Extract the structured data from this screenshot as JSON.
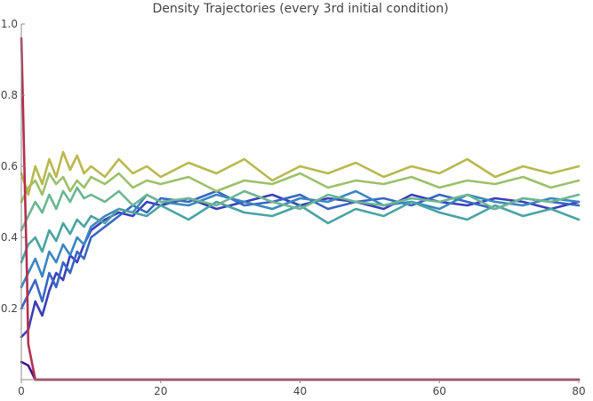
{
  "chart_data": {
    "type": "line",
    "title": "Density Trajectories (every 3rd initial condition)",
    "xlabel": "",
    "ylabel": "",
    "xlim": [
      0,
      80
    ],
    "ylim": [
      0,
      1.0
    ],
    "x_ticks": [
      0,
      20,
      40,
      60,
      80
    ],
    "y_ticks": [
      0.2,
      0.4,
      0.6,
      0.8,
      1.0
    ],
    "x_tick_labels": [
      "0",
      "20",
      "40",
      "60",
      "80"
    ],
    "y_tick_labels": [
      "0.2",
      "0.4",
      "0.6",
      "0.8",
      "1.0"
    ],
    "grid": false,
    "legend": "none",
    "colormap": [
      "#4b0f8c",
      "#3a4fc8",
      "#3a86c0",
      "#4aa3a3",
      "#6cb692",
      "#9cc06a",
      "#c7b64e",
      "#b3304e"
    ],
    "series": [
      {
        "color": "#4b0f8c",
        "x": [
          0,
          1,
          2,
          3,
          4,
          5,
          80
        ],
        "values": [
          0.05,
          0.04,
          0.0,
          0.0,
          0.0,
          0.0,
          0.0
        ]
      },
      {
        "color": "#3a3fb8",
        "x": [
          0,
          1,
          2,
          3,
          4,
          5,
          6,
          7,
          8,
          9,
          10,
          12,
          14,
          16,
          18,
          20,
          24,
          28,
          32,
          36,
          40,
          44,
          48,
          52,
          56,
          60,
          64,
          68,
          72,
          76,
          80
        ],
        "values": [
          0.12,
          0.14,
          0.22,
          0.18,
          0.25,
          0.3,
          0.28,
          0.35,
          0.33,
          0.38,
          0.42,
          0.45,
          0.47,
          0.46,
          0.5,
          0.49,
          0.51,
          0.48,
          0.5,
          0.52,
          0.49,
          0.51,
          0.5,
          0.48,
          0.52,
          0.5,
          0.49,
          0.51,
          0.5,
          0.48,
          0.5
        ]
      },
      {
        "color": "#3866c4",
        "x": [
          0,
          1,
          2,
          3,
          4,
          5,
          6,
          7,
          8,
          9,
          10,
          12,
          14,
          16,
          18,
          20,
          24,
          28,
          32,
          36,
          40,
          44,
          48,
          52,
          56,
          60,
          64,
          68,
          72,
          76,
          80
        ],
        "values": [
          0.2,
          0.24,
          0.28,
          0.22,
          0.3,
          0.26,
          0.33,
          0.3,
          0.36,
          0.34,
          0.4,
          0.43,
          0.46,
          0.49,
          0.47,
          0.51,
          0.5,
          0.53,
          0.49,
          0.5,
          0.52,
          0.48,
          0.5,
          0.51,
          0.49,
          0.52,
          0.5,
          0.48,
          0.51,
          0.5,
          0.49
        ]
      },
      {
        "color": "#3a86c0",
        "x": [
          0,
          1,
          2,
          3,
          4,
          5,
          6,
          7,
          8,
          9,
          10,
          12,
          14,
          16,
          18,
          20,
          24,
          28,
          32,
          36,
          40,
          44,
          48,
          52,
          56,
          60,
          64,
          68,
          72,
          76,
          80
        ],
        "values": [
          0.26,
          0.3,
          0.34,
          0.29,
          0.36,
          0.33,
          0.38,
          0.35,
          0.4,
          0.38,
          0.43,
          0.46,
          0.48,
          0.47,
          0.52,
          0.5,
          0.49,
          0.52,
          0.5,
          0.48,
          0.51,
          0.5,
          0.53,
          0.49,
          0.5,
          0.48,
          0.52,
          0.5,
          0.49,
          0.51,
          0.5
        ]
      },
      {
        "color": "#4aa3a3",
        "x": [
          0,
          1,
          2,
          3,
          4,
          5,
          6,
          7,
          8,
          9,
          10,
          12,
          14,
          16,
          18,
          20,
          24,
          28,
          32,
          36,
          40,
          44,
          48,
          52,
          56,
          60,
          64,
          68,
          72,
          76,
          80
        ],
        "values": [
          0.33,
          0.38,
          0.4,
          0.36,
          0.42,
          0.39,
          0.44,
          0.41,
          0.45,
          0.43,
          0.46,
          0.44,
          0.48,
          0.47,
          0.46,
          0.49,
          0.45,
          0.5,
          0.47,
          0.46,
          0.49,
          0.44,
          0.48,
          0.46,
          0.5,
          0.47,
          0.45,
          0.49,
          0.46,
          0.48,
          0.45
        ]
      },
      {
        "color": "#6cb692",
        "x": [
          0,
          1,
          2,
          3,
          4,
          5,
          6,
          7,
          8,
          9,
          10,
          12,
          14,
          16,
          18,
          20,
          24,
          28,
          32,
          36,
          40,
          44,
          48,
          52,
          56,
          60,
          64,
          68,
          72,
          76,
          80
        ],
        "values": [
          0.42,
          0.46,
          0.5,
          0.47,
          0.52,
          0.48,
          0.53,
          0.5,
          0.54,
          0.51,
          0.52,
          0.5,
          0.53,
          0.49,
          0.52,
          0.5,
          0.51,
          0.49,
          0.53,
          0.5,
          0.48,
          0.52,
          0.5,
          0.49,
          0.51,
          0.5,
          0.52,
          0.48,
          0.51,
          0.5,
          0.52
        ]
      },
      {
        "color": "#9cc06a",
        "x": [
          0,
          1,
          2,
          3,
          4,
          5,
          6,
          7,
          8,
          9,
          10,
          12,
          14,
          16,
          18,
          20,
          24,
          28,
          32,
          36,
          40,
          44,
          48,
          52,
          56,
          60,
          64,
          68,
          72,
          76,
          80
        ],
        "values": [
          0.5,
          0.54,
          0.56,
          0.52,
          0.58,
          0.55,
          0.57,
          0.53,
          0.56,
          0.54,
          0.57,
          0.55,
          0.58,
          0.54,
          0.56,
          0.55,
          0.57,
          0.53,
          0.56,
          0.55,
          0.58,
          0.54,
          0.56,
          0.55,
          0.57,
          0.54,
          0.56,
          0.55,
          0.57,
          0.54,
          0.56
        ]
      },
      {
        "color": "#b8b84e",
        "x": [
          0,
          1,
          2,
          3,
          4,
          5,
          6,
          7,
          8,
          9,
          10,
          12,
          14,
          16,
          18,
          20,
          24,
          28,
          32,
          36,
          40,
          44,
          48,
          52,
          56,
          60,
          64,
          68,
          72,
          76,
          80
        ],
        "values": [
          0.58,
          0.52,
          0.6,
          0.55,
          0.62,
          0.57,
          0.64,
          0.59,
          0.63,
          0.58,
          0.6,
          0.57,
          0.62,
          0.58,
          0.6,
          0.57,
          0.61,
          0.58,
          0.62,
          0.56,
          0.6,
          0.58,
          0.61,
          0.57,
          0.6,
          0.58,
          0.62,
          0.57,
          0.6,
          0.58,
          0.6
        ]
      },
      {
        "color": "#b3304e",
        "x": [
          0,
          0.2,
          0.5,
          0.8,
          1,
          2,
          80
        ],
        "values": [
          0.96,
          0.8,
          0.55,
          0.3,
          0.1,
          0.0,
          0.0
        ]
      }
    ]
  }
}
